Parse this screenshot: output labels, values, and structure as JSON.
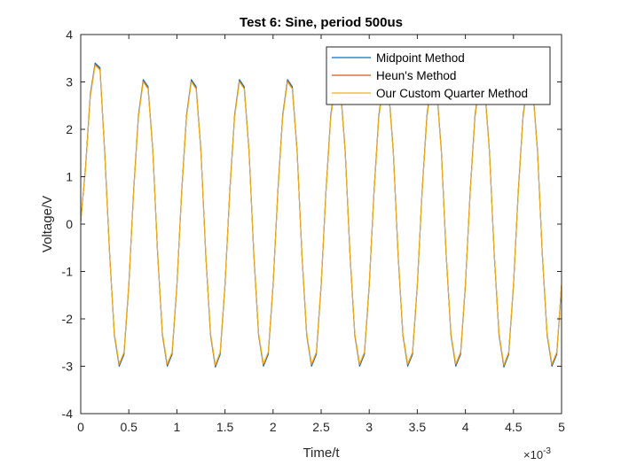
{
  "chart_data": {
    "type": "line",
    "title": "Test 6: Sine, period 500us",
    "xlabel": "Time/t",
    "ylabel": "Voltage/V",
    "x_multiplier_base": "×10",
    "x_multiplier_exp": "-3",
    "xlim": [
      0,
      0.005
    ],
    "ylim": [
      -4,
      4
    ],
    "xticks": [
      0,
      0.0005,
      0.001,
      0.0015,
      0.002,
      0.0025,
      0.003,
      0.0035,
      0.004,
      0.0045,
      0.005
    ],
    "xtick_labels": [
      "0",
      "0.5",
      "1",
      "1.5",
      "2",
      "2.5",
      "3",
      "3.5",
      "4",
      "4.5",
      "5"
    ],
    "yticks": [
      -4,
      -3,
      -2,
      -1,
      0,
      1,
      2,
      3,
      4
    ],
    "ytick_labels": [
      "-4",
      "-3",
      "-2",
      "-1",
      "0",
      "1",
      "2",
      "3",
      "4"
    ],
    "grid": false,
    "legend_position": "top-right",
    "period": 0.0005,
    "series": [
      {
        "name": "Midpoint Method",
        "color": "#0072BD",
        "x": [
          0,
          5e-05,
          0.0001,
          0.00015,
          0.0002,
          0.00025,
          0.0003,
          0.00035,
          0.0004,
          0.00045,
          0.0005,
          0.00055,
          0.0006,
          0.00065,
          0.0007,
          0.00075,
          0.0008,
          0.00085,
          0.0009,
          0.00095,
          0.001,
          0.00105,
          0.0011,
          0.00115,
          0.0012,
          0.00125,
          0.0013,
          0.00135,
          0.0014,
          0.00145,
          0.0015,
          0.00155,
          0.0016,
          0.00165,
          0.0017,
          0.00175,
          0.0018,
          0.00185,
          0.0019,
          0.00195,
          0.002,
          0.00205,
          0.0021,
          0.00215,
          0.0022,
          0.00225,
          0.0023,
          0.00235,
          0.0024,
          0.00245,
          0.0025,
          0.00255,
          0.0026,
          0.00265,
          0.0027,
          0.00275,
          0.0028,
          0.00285,
          0.0029,
          0.00295,
          0.003,
          0.00305,
          0.0031,
          0.00315,
          0.0032,
          0.00325,
          0.0033,
          0.00335,
          0.0034,
          0.00345,
          0.0035,
          0.00355,
          0.0036,
          0.00365,
          0.0037,
          0.00375,
          0.0038,
          0.00385,
          0.0039,
          0.00395,
          0.004,
          0.00405,
          0.0041,
          0.00415,
          0.0042,
          0.00425,
          0.0043,
          0.00435,
          0.0044,
          0.00445,
          0.0045,
          0.00455,
          0.0046,
          0.00465,
          0.0047,
          0.00475,
          0.0048,
          0.00485,
          0.0049,
          0.00495,
          0.005
        ],
        "y": [
          0.05,
          1.2,
          2.75,
          3.4,
          3.3,
          1.5,
          -0.6,
          -2.35,
          -3.0,
          -2.75,
          -1.3,
          0.7,
          2.3,
          3.05,
          2.9,
          1.55,
          -0.65,
          -2.35,
          -3.0,
          -2.75,
          -1.3,
          0.7,
          2.3,
          3.05,
          2.9,
          1.55,
          -0.65,
          -2.35,
          -3.02,
          -2.75,
          -1.3,
          0.7,
          2.3,
          3.05,
          2.9,
          1.55,
          -0.65,
          -2.35,
          -3.0,
          -2.75,
          -1.3,
          0.7,
          2.3,
          3.05,
          2.9,
          1.55,
          -0.65,
          -2.35,
          -3.0,
          -2.75,
          -1.3,
          0.7,
          2.3,
          3.05,
          2.9,
          1.55,
          -0.65,
          -2.35,
          -3.0,
          -2.75,
          -1.3,
          0.7,
          2.3,
          3.05,
          2.9,
          1.55,
          -0.65,
          -2.35,
          -3.0,
          -2.75,
          -1.3,
          0.7,
          2.3,
          3.05,
          2.9,
          1.55,
          -0.65,
          -2.35,
          -3.0,
          -2.75,
          -1.3,
          0.7,
          2.3,
          3.05,
          2.9,
          1.55,
          -0.65,
          -2.35,
          -3.02,
          -2.75,
          -1.3,
          0.7,
          2.3,
          3.05,
          2.9,
          1.55,
          -0.65,
          -2.35,
          -3.0,
          -2.75,
          -1.3
        ]
      },
      {
        "name": "Heun's Method",
        "color": "#D95319",
        "x": [
          0,
          5e-05,
          0.0001,
          0.00015,
          0.0002,
          0.00025,
          0.0003,
          0.00035,
          0.0004,
          0.00045,
          0.0005,
          0.00055,
          0.0006,
          0.00065,
          0.0007,
          0.00075,
          0.0008,
          0.00085,
          0.0009,
          0.00095,
          0.001,
          0.00105,
          0.0011,
          0.00115,
          0.0012,
          0.00125,
          0.0013,
          0.00135,
          0.0014,
          0.00145,
          0.0015,
          0.00155,
          0.0016,
          0.00165,
          0.0017,
          0.00175,
          0.0018,
          0.00185,
          0.0019,
          0.00195,
          0.002,
          0.00205,
          0.0021,
          0.00215,
          0.0022,
          0.00225,
          0.0023,
          0.00235,
          0.0024,
          0.00245,
          0.0025,
          0.00255,
          0.0026,
          0.00265,
          0.0027,
          0.00275,
          0.0028,
          0.00285,
          0.0029,
          0.00295,
          0.003,
          0.00305,
          0.0031,
          0.00315,
          0.0032,
          0.00325,
          0.0033,
          0.00335,
          0.0034,
          0.00345,
          0.0035,
          0.00355,
          0.0036,
          0.00365,
          0.0037,
          0.00375,
          0.0038,
          0.00385,
          0.0039,
          0.00395,
          0.004,
          0.00405,
          0.0041,
          0.00415,
          0.0042,
          0.00425,
          0.0043,
          0.00435,
          0.0044,
          0.00445,
          0.0045,
          0.00455,
          0.0046,
          0.00465,
          0.0047,
          0.00475,
          0.0048,
          0.00485,
          0.0049,
          0.00495,
          0.005
        ],
        "y": [
          0.05,
          1.18,
          2.72,
          3.37,
          3.27,
          1.48,
          -0.62,
          -2.33,
          -2.97,
          -2.72,
          -1.28,
          0.68,
          2.27,
          3.02,
          2.87,
          1.53,
          -0.63,
          -2.33,
          -2.97,
          -2.72,
          -1.28,
          0.68,
          2.27,
          3.02,
          2.87,
          1.53,
          -0.63,
          -2.33,
          -2.99,
          -2.72,
          -1.28,
          0.68,
          2.27,
          3.02,
          2.87,
          1.53,
          -0.63,
          -2.33,
          -2.97,
          -2.72,
          -1.28,
          0.68,
          2.27,
          3.02,
          2.87,
          1.53,
          -0.63,
          -2.33,
          -2.97,
          -2.72,
          -1.28,
          0.68,
          2.27,
          3.02,
          2.87,
          1.53,
          -0.63,
          -2.33,
          -2.97,
          -2.72,
          -1.28,
          0.68,
          2.27,
          3.02,
          2.87,
          1.53,
          -0.63,
          -2.33,
          -2.97,
          -2.72,
          -1.28,
          0.68,
          2.27,
          3.02,
          2.87,
          1.53,
          -0.63,
          -2.33,
          -2.97,
          -2.72,
          -1.28,
          0.68,
          2.27,
          3.02,
          2.87,
          1.53,
          -0.63,
          -2.33,
          -2.99,
          -2.72,
          -1.28,
          0.68,
          2.27,
          3.02,
          2.87,
          1.53,
          -0.63,
          -2.33,
          -2.97,
          -2.72,
          -1.28
        ]
      },
      {
        "name": "Our Custom Quarter Method",
        "color": "#EDB120",
        "x": [
          0,
          5e-05,
          0.0001,
          0.00015,
          0.0002,
          0.00025,
          0.0003,
          0.00035,
          0.0004,
          0.00045,
          0.0005,
          0.00055,
          0.0006,
          0.00065,
          0.0007,
          0.00075,
          0.0008,
          0.00085,
          0.0009,
          0.00095,
          0.001,
          0.00105,
          0.0011,
          0.00115,
          0.0012,
          0.00125,
          0.0013,
          0.00135,
          0.0014,
          0.00145,
          0.0015,
          0.00155,
          0.0016,
          0.00165,
          0.0017,
          0.00175,
          0.0018,
          0.00185,
          0.0019,
          0.00195,
          0.002,
          0.00205,
          0.0021,
          0.00215,
          0.0022,
          0.00225,
          0.0023,
          0.00235,
          0.0024,
          0.00245,
          0.0025,
          0.00255,
          0.0026,
          0.00265,
          0.0027,
          0.00275,
          0.0028,
          0.00285,
          0.0029,
          0.00295,
          0.003,
          0.00305,
          0.0031,
          0.00315,
          0.0032,
          0.00325,
          0.0033,
          0.00335,
          0.0034,
          0.00345,
          0.0035,
          0.00355,
          0.0036,
          0.00365,
          0.0037,
          0.00375,
          0.0038,
          0.00385,
          0.0039,
          0.00395,
          0.004,
          0.00405,
          0.0041,
          0.00415,
          0.0042,
          0.00425,
          0.0043,
          0.00435,
          0.0044,
          0.00445,
          0.0045,
          0.00455,
          0.0046,
          0.00465,
          0.0047,
          0.00475,
          0.0048,
          0.00485,
          0.0049,
          0.00495,
          0.005
        ],
        "y": [
          0.05,
          1.16,
          2.7,
          3.35,
          3.25,
          1.46,
          -0.64,
          -2.31,
          -2.95,
          -2.7,
          -1.26,
          0.66,
          2.25,
          3.0,
          2.85,
          1.51,
          -0.61,
          -2.31,
          -2.95,
          -2.7,
          -1.26,
          0.66,
          2.25,
          3.0,
          2.85,
          1.51,
          -0.61,
          -2.31,
          -2.97,
          -2.7,
          -1.26,
          0.66,
          2.25,
          3.0,
          2.85,
          1.51,
          -0.61,
          -2.31,
          -2.95,
          -2.7,
          -1.26,
          0.66,
          2.25,
          3.0,
          2.85,
          1.51,
          -0.61,
          -2.31,
          -2.95,
          -2.7,
          -1.26,
          0.66,
          2.25,
          3.0,
          2.85,
          1.51,
          -0.61,
          -2.31,
          -2.95,
          -2.7,
          -1.26,
          0.66,
          2.25,
          3.0,
          2.85,
          1.51,
          -0.61,
          -2.31,
          -2.95,
          -2.7,
          -1.26,
          0.66,
          2.25,
          3.0,
          2.85,
          1.51,
          -0.61,
          -2.31,
          -2.95,
          -2.7,
          -1.26,
          0.66,
          2.25,
          3.0,
          2.85,
          1.51,
          -0.61,
          -2.31,
          -2.97,
          -2.7,
          -1.26,
          0.66,
          2.25,
          3.0,
          2.85,
          1.51,
          -0.61,
          -2.31,
          -2.95,
          -2.7,
          -1.26
        ]
      }
    ]
  }
}
